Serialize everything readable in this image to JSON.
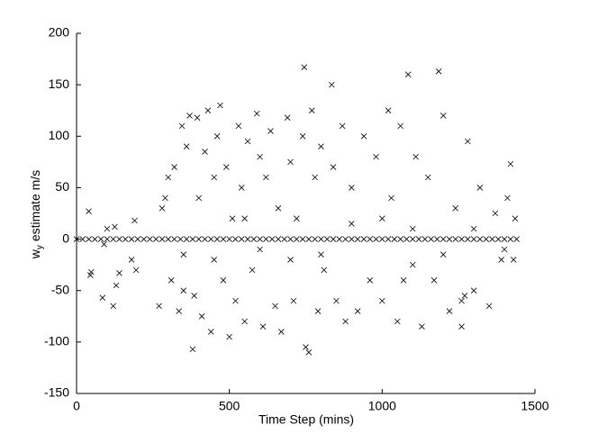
{
  "chart_data": {
    "type": "scatter",
    "xlabel": "Time Step (mins)",
    "ylabel_parts": [
      "w",
      "y",
      " estimate m/s"
    ],
    "xlim": [
      0,
      1500
    ],
    "xticks": [
      0,
      500,
      1000,
      1500
    ],
    "ylim": [
      -150,
      200
    ],
    "yticks": [
      -150,
      -100,
      -50,
      0,
      50,
      100,
      150,
      200
    ],
    "grid": false,
    "marker": "x",
    "series": [
      {
        "color": "#000000",
        "x": [
          40,
          45,
          48,
          85,
          90,
          100,
          125,
          120,
          130,
          140,
          190,
          180,
          195,
          270,
          280,
          290,
          300,
          310,
          320,
          335,
          345,
          350,
          360,
          370,
          380,
          385,
          395,
          400,
          410,
          420,
          430,
          440,
          450,
          460,
          470,
          480,
          490,
          500,
          510,
          520,
          530,
          540,
          550,
          560,
          575,
          590,
          600,
          610,
          620,
          635,
          650,
          660,
          670,
          690,
          700,
          710,
          720,
          740,
          745,
          750,
          760,
          770,
          780,
          790,
          800,
          810,
          835,
          840,
          850,
          870,
          880,
          900,
          920,
          940,
          960,
          980,
          1000,
          1020,
          1030,
          1050,
          1060,
          1070,
          1085,
          1100,
          1110,
          1130,
          1150,
          1170,
          1185,
          1200,
          1220,
          1240,
          1260,
          1280,
          1300,
          1320,
          1350,
          1370,
          1390,
          1410,
          1420,
          1430,
          1435,
          1260,
          1270,
          600,
          700,
          900,
          1000,
          350,
          450,
          550,
          800,
          1100,
          1200,
          1300,
          1400,
          0,
          20,
          40,
          60,
          80,
          100,
          120,
          140,
          160,
          180,
          200,
          220,
          240,
          260,
          280,
          300,
          320,
          340,
          360,
          380,
          400,
          420,
          440,
          460,
          480,
          500,
          520,
          540,
          560,
          580,
          600,
          620,
          640,
          660,
          680,
          700,
          720,
          740,
          760,
          780,
          800,
          820,
          840,
          860,
          880,
          900,
          920,
          940,
          960,
          980,
          1000,
          1020,
          1040,
          1060,
          1080,
          1100,
          1120,
          1140,
          1160,
          1180,
          1200,
          1220,
          1240,
          1260,
          1280,
          1300,
          1320,
          1340,
          1360,
          1380,
          1400,
          1420,
          1440
        ],
        "values": [
          27,
          -35,
          -32,
          -57,
          -5,
          10,
          12,
          -65,
          -45,
          -33,
          18,
          -20,
          -30,
          -65,
          30,
          40,
          60,
          -40,
          70,
          -70,
          110,
          -50,
          90,
          120,
          -107,
          -55,
          118,
          40,
          -75,
          85,
          125,
          -90,
          60,
          100,
          130,
          -40,
          70,
          -95,
          20,
          -60,
          110,
          50,
          -80,
          95,
          -30,
          122,
          80,
          -85,
          60,
          105,
          -65,
          30,
          -90,
          118,
          75,
          -60,
          20,
          100,
          167,
          -105,
          -110,
          125,
          60,
          -70,
          90,
          -30,
          150,
          70,
          -60,
          110,
          -80,
          50,
          -70,
          100,
          -40,
          80,
          -60,
          125,
          40,
          -80,
          110,
          -40,
          160,
          -25,
          80,
          -85,
          60,
          -40,
          163,
          120,
          -70,
          30,
          -85,
          95,
          -50,
          50,
          -65,
          25,
          -20,
          40,
          73,
          -20,
          20,
          -60,
          -55,
          -10,
          -20,
          15,
          20,
          -15,
          -20,
          20,
          -15,
          10,
          -15,
          10,
          -10,
          0,
          0,
          0,
          0,
          0,
          0,
          0,
          0,
          0,
          0,
          0,
          0,
          0,
          0,
          0,
          0,
          0,
          0,
          0,
          0,
          0,
          0,
          0,
          0,
          0,
          0,
          0,
          0,
          0,
          0,
          0,
          0,
          0,
          0,
          0,
          0,
          0,
          0,
          0,
          0,
          0,
          0,
          0,
          0,
          0,
          0,
          0,
          0,
          0,
          0,
          0,
          0,
          0,
          0,
          0,
          0,
          0,
          0,
          0,
          0,
          0,
          0,
          0,
          0,
          0,
          0,
          0,
          0,
          0,
          0,
          0,
          0,
          0
        ]
      }
    ]
  }
}
